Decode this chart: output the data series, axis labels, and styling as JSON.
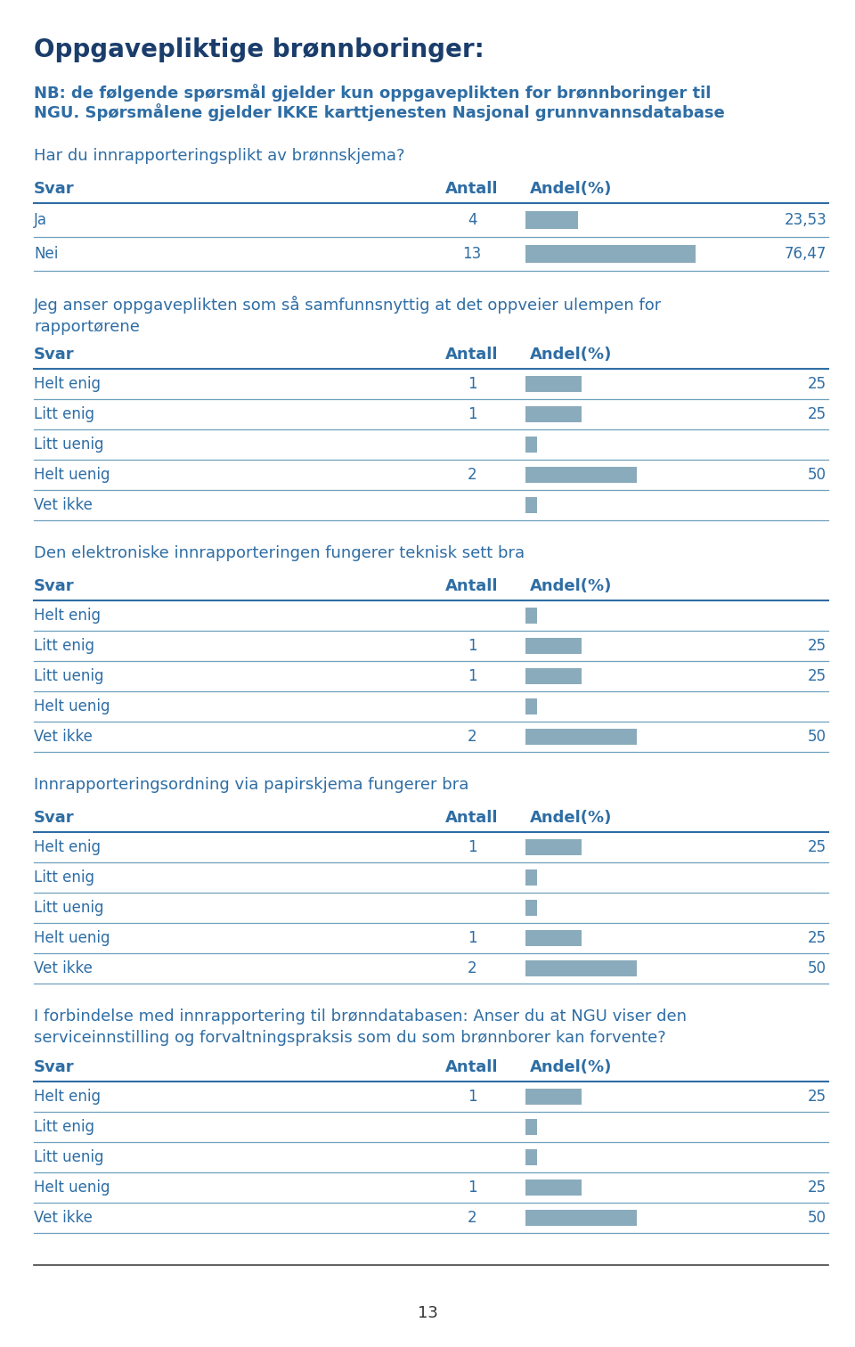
{
  "title_line1": "Oppgavepliktige brønnboringer:",
  "subtitle_line1": "NB: de følgende spørsmål gjelder kun oppgaveplikten for brønnboringer til",
  "subtitle_line2": "NGU. Spørsmålene gjelder IKKE karttjenesten Nasjonal grunnvannsdatabase",
  "header_color": "#1a3d6b",
  "text_color": "#2e6da4",
  "bar_color": "#8aabbc",
  "line_color": "#6fa0bc",
  "sections": [
    {
      "question": "Har du innrapporteringsplikt av brønnskjema?",
      "rows": [
        {
          "label": "Ja",
          "antall": "4",
          "bar_pct": 23.53,
          "andel": "23,53"
        },
        {
          "label": "Nei",
          "antall": "13",
          "bar_pct": 76.47,
          "andel": "76,47"
        }
      ]
    },
    {
      "question": "Jeg anser oppgaveplikten som så samfunnsnyttig at det oppveier ulempen for\nrapportørene",
      "rows": [
        {
          "label": "Helt enig",
          "antall": "1",
          "bar_pct": 25.0,
          "andel": "25"
        },
        {
          "label": "Litt enig",
          "antall": "1",
          "bar_pct": 25.0,
          "andel": "25"
        },
        {
          "label": "Litt uenig",
          "antall": "",
          "bar_pct": 5.0,
          "andel": ""
        },
        {
          "label": "Helt uenig",
          "antall": "2",
          "bar_pct": 50.0,
          "andel": "50"
        },
        {
          "label": "Vet ikke",
          "antall": "",
          "bar_pct": 5.0,
          "andel": ""
        }
      ]
    },
    {
      "question": "Den elektroniske innrapporteringen fungerer teknisk sett bra",
      "rows": [
        {
          "label": "Helt enig",
          "antall": "",
          "bar_pct": 5.0,
          "andel": ""
        },
        {
          "label": "Litt enig",
          "antall": "1",
          "bar_pct": 25.0,
          "andel": "25"
        },
        {
          "label": "Litt uenig",
          "antall": "1",
          "bar_pct": 25.0,
          "andel": "25"
        },
        {
          "label": "Helt uenig",
          "antall": "",
          "bar_pct": 5.0,
          "andel": ""
        },
        {
          "label": "Vet ikke",
          "antall": "2",
          "bar_pct": 50.0,
          "andel": "50"
        }
      ]
    },
    {
      "question": "Innrapporteringsordning via papirskjema fungerer bra",
      "rows": [
        {
          "label": "Helt enig",
          "antall": "1",
          "bar_pct": 25.0,
          "andel": "25"
        },
        {
          "label": "Litt enig",
          "antall": "",
          "bar_pct": 5.0,
          "andel": ""
        },
        {
          "label": "Litt uenig",
          "antall": "",
          "bar_pct": 5.0,
          "andel": ""
        },
        {
          "label": "Helt uenig",
          "antall": "1",
          "bar_pct": 25.0,
          "andel": "25"
        },
        {
          "label": "Vet ikke",
          "antall": "2",
          "bar_pct": 50.0,
          "andel": "50"
        }
      ]
    },
    {
      "question": "I forbindelse med innrapportering til brønndatabasen: Anser du at NGU viser den\nserviceinnstilling og forvaltningspraksis som du som brønnborer kan forvente?",
      "rows": [
        {
          "label": "Helt enig",
          "antall": "1",
          "bar_pct": 25.0,
          "andel": "25"
        },
        {
          "label": "Litt enig",
          "antall": "",
          "bar_pct": 5.0,
          "andel": ""
        },
        {
          "label": "Litt uenig",
          "antall": "",
          "bar_pct": 5.0,
          "andel": ""
        },
        {
          "label": "Helt uenig",
          "antall": "1",
          "bar_pct": 25.0,
          "andel": "25"
        },
        {
          "label": "Vet ikke",
          "antall": "2",
          "bar_pct": 50.0,
          "andel": "50"
        }
      ]
    }
  ],
  "col_header": [
    "Svar",
    "Antall",
    "Andel(%)"
  ],
  "page_number": "13",
  "bar_max_pct": 100.0
}
